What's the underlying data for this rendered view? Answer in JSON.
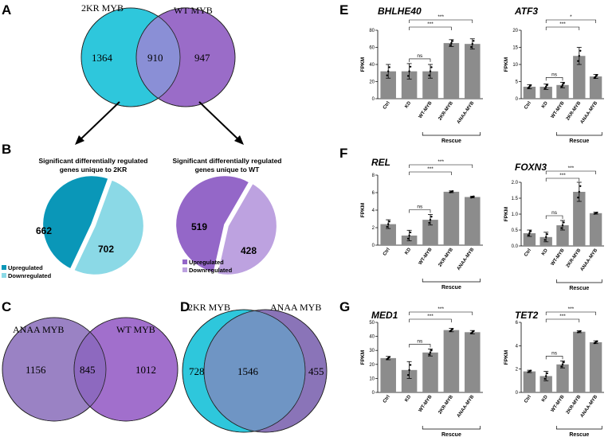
{
  "panels": {
    "A": "A",
    "B": "B",
    "C": "C",
    "D": "D",
    "E": "E",
    "F": "F",
    "G": "G"
  },
  "colors": {
    "cyan": "#2ec7dc",
    "purple": "#9a6cc8",
    "overlap": "#8a8fd6",
    "bar": "#8c8c8c",
    "ctealDark": "#0a97b8",
    "ctealLight": "#8bd9e6",
    "pDark": "#9467c8",
    "pLight": "#bda2e0"
  },
  "venn_a": {
    "left_label": "2KR MYB",
    "right_label": "WT MYB",
    "left_only": "1364",
    "overlap": "910",
    "right_only": "947"
  },
  "pie_2kr": {
    "title_line1": "Significant differentially regulated",
    "title_line2": "genes unique to 2KR",
    "up": 662,
    "down": 702,
    "up_label": "662",
    "down_label": "702",
    "legend_up": "Upregulated",
    "legend_down": "Downregulated"
  },
  "pie_wt": {
    "title_line1": "Significant differentially regulated",
    "title_line2": "genes unique to WT",
    "up": 519,
    "down": 428,
    "up_label": "519",
    "down_label": "428",
    "legend_up": "Upregulated",
    "legend_down": "Downregulated"
  },
  "venn_c": {
    "left_label": "ANAA MYB",
    "right_label": "WT MYB",
    "left_only": "1156",
    "overlap": "845",
    "right_only": "1012"
  },
  "venn_d": {
    "left_label": "2KR MYB",
    "right_label": "ANAA MYB",
    "left_only": "728",
    "overlap": "1546",
    "right_only": "455"
  },
  "chart_data": [
    {
      "type": "bar",
      "title": "BHLHE40",
      "ylabel": "FPKM",
      "ylim": [
        0,
        80
      ],
      "yticks": [
        "0",
        "20",
        "40",
        "60",
        "80"
      ],
      "categories": [
        "Ctrl",
        "KD",
        "WT-MYB",
        "2KR-MYB",
        "ANAA-MYB"
      ],
      "values": [
        32,
        32,
        32,
        65,
        64
      ],
      "errors": [
        8,
        9,
        8,
        4,
        6
      ],
      "comparisons": [
        {
          "label": "***",
          "from": 1,
          "to": 4
        },
        {
          "label": "***",
          "from": 1,
          "to": 3
        },
        {
          "label": "ns",
          "from": 1,
          "to": 2
        }
      ],
      "rescue": "Rescue"
    },
    {
      "type": "bar",
      "title": "ATF3",
      "ylabel": "FPKM",
      "ylim": [
        0,
        20
      ],
      "yticks": [
        "0",
        "5",
        "10",
        "15",
        "20"
      ],
      "categories": [
        "Ctrl",
        "KD",
        "WT-MYB",
        "2KR-MYB",
        "ANAA-MYB"
      ],
      "values": [
        3.5,
        3.5,
        4,
        12.5,
        6.5
      ],
      "errors": [
        0.6,
        0.8,
        0.8,
        2.5,
        0.6
      ],
      "comparisons": [
        {
          "label": "*",
          "from": 1,
          "to": 4
        },
        {
          "label": "***",
          "from": 1,
          "to": 3
        },
        {
          "label": "ns",
          "from": 1,
          "to": 2
        }
      ],
      "rescue": "Rescue"
    },
    {
      "type": "bar",
      "title": "REL",
      "ylabel": "FPKM",
      "ylim": [
        0,
        8
      ],
      "yticks": [
        "0",
        "2",
        "4",
        "6",
        "8"
      ],
      "categories": [
        "Ctrl",
        "KD",
        "WT-MYB",
        "2KR-MYB",
        "ANAA-MYB"
      ],
      "values": [
        2.4,
        1.1,
        2.9,
        6.1,
        5.5
      ],
      "errors": [
        0.5,
        0.6,
        0.6,
        0.1,
        0.1
      ],
      "comparisons": [
        {
          "label": "***",
          "from": 1,
          "to": 4
        },
        {
          "label": "***",
          "from": 1,
          "to": 3
        },
        {
          "label": "ns",
          "from": 1,
          "to": 2
        }
      ],
      "rescue": "Rescue"
    },
    {
      "type": "bar",
      "title": "FOXN3",
      "ylabel": "FPKM",
      "ylim": [
        0,
        2
      ],
      "yticks": [
        "0.0",
        "0.5",
        "1.0",
        "1.5",
        "2.0"
      ],
      "categories": [
        "Ctrl",
        "KD",
        "WT-MYB",
        "2KR-MYB",
        "ANAA-MYB"
      ],
      "values": [
        0.4,
        0.28,
        0.65,
        1.7,
        1.03
      ],
      "errors": [
        0.1,
        0.15,
        0.15,
        0.3,
        0.03
      ],
      "comparisons": [
        {
          "label": "***",
          "from": 1,
          "to": 4
        },
        {
          "label": "***",
          "from": 1,
          "to": 3
        },
        {
          "label": "ns",
          "from": 1,
          "to": 2
        }
      ],
      "rescue": "Rescue"
    },
    {
      "type": "bar",
      "title": "MED1",
      "ylabel": "FPKM",
      "ylim": [
        0,
        50
      ],
      "yticks": [
        "0",
        "10",
        "20",
        "30",
        "40",
        "50"
      ],
      "categories": [
        "Ctrl",
        "KD",
        "WT-MYB",
        "2KR-MYB",
        "ANAA-MYB"
      ],
      "values": [
        24.5,
        16,
        28.5,
        44.5,
        43
      ],
      "errors": [
        1.2,
        6,
        2.5,
        1.2,
        1.2
      ],
      "comparisons": [
        {
          "label": "***",
          "from": 1,
          "to": 4
        },
        {
          "label": "***",
          "from": 1,
          "to": 3
        },
        {
          "label": "ns",
          "from": 1,
          "to": 2
        }
      ],
      "rescue": "Rescue"
    },
    {
      "type": "bar",
      "title": "TET2",
      "ylabel": "FPKM",
      "ylim": [
        0,
        6
      ],
      "yticks": [
        "0",
        "2",
        "4",
        "6"
      ],
      "categories": [
        "Ctrl",
        "KD",
        "WT-MYB",
        "2KR-MYB",
        "ANAA-MYB"
      ],
      "values": [
        1.8,
        1.4,
        2.4,
        5.2,
        4.3
      ],
      "errors": [
        0.1,
        0.4,
        0.3,
        0.08,
        0.12
      ],
      "comparisons": [
        {
          "label": "***",
          "from": 1,
          "to": 4
        },
        {
          "label": "***",
          "from": 1,
          "to": 3
        },
        {
          "label": "ns",
          "from": 1,
          "to": 2
        }
      ],
      "rescue": "Rescue"
    }
  ]
}
